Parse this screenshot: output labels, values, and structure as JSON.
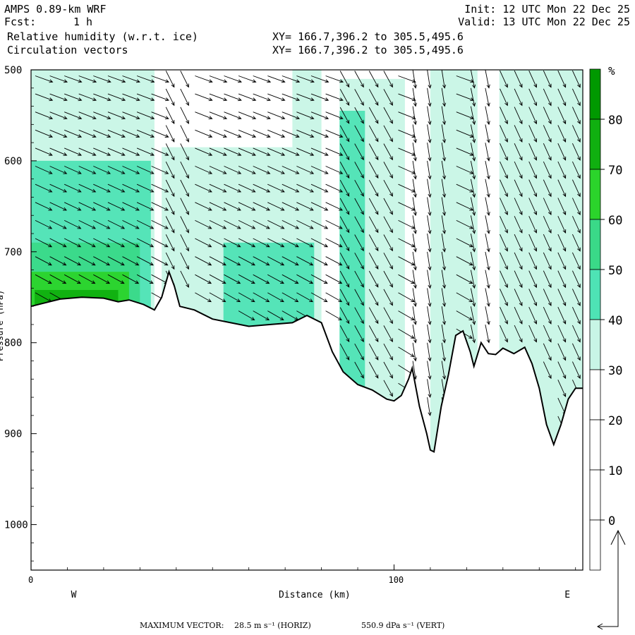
{
  "header": {
    "model": "AMPS 0.89-km WRF",
    "fcst_label": "Fcst:",
    "fcst_value": "1 h",
    "init": "Init: 12 UTC Mon 22 Dec 25",
    "valid": "Valid: 13 UTC Mon 22 Dec 25",
    "field1": "Relative humidity (w.r.t. ice)",
    "field2": "Circulation vectors",
    "xy1": "XY= 166.7,396.2 to 305.5,495.6",
    "xy2": "XY= 166.7,396.2 to 305.5,495.6"
  },
  "footer": {
    "max_vector_label": "MAXIMUM VECTOR:",
    "max_horiz": "28.5 m s⁻¹ (HORIZ)",
    "max_vert": "550.9 dPa s⁻¹ (VERT)"
  },
  "chart_data": {
    "type": "area",
    "title": "Relative humidity (w.r.t. ice)",
    "xlabel": "Distance (km)",
    "ylabel": "Pressure (hPa)",
    "x_range": [
      0,
      152
    ],
    "y_range": [
      500,
      1050
    ],
    "x_ticks": [
      0,
      100
    ],
    "y_ticks": [
      500,
      600,
      700,
      800,
      900,
      1000
    ],
    "x_end_labels": {
      "left": "W",
      "right": "E"
    },
    "colorbar": {
      "unit": "%",
      "levels": [
        0,
        10,
        20,
        30,
        40,
        50,
        60,
        70,
        80
      ],
      "colors": [
        "#ffffff",
        "#ffffff",
        "#ffffff",
        "#ffffff",
        "#c8f5e6",
        "#4ee3b5",
        "#3ad988",
        "#2bd42b",
        "#10b010",
        "#009900"
      ]
    },
    "terrain_hpa": [
      [
        0,
        760
      ],
      [
        3,
        757
      ],
      [
        8,
        752
      ],
      [
        14,
        750
      ],
      [
        20,
        751
      ],
      [
        24,
        755
      ],
      [
        27,
        753
      ],
      [
        31,
        758
      ],
      [
        34,
        764
      ],
      [
        36,
        750
      ],
      [
        38,
        722
      ],
      [
        39.5,
        738
      ],
      [
        41,
        760
      ],
      [
        45,
        764
      ],
      [
        50,
        774
      ],
      [
        55,
        778
      ],
      [
        60,
        782
      ],
      [
        66,
        780
      ],
      [
        72,
        778
      ],
      [
        76,
        770
      ],
      [
        80,
        778
      ],
      [
        83,
        810
      ],
      [
        86,
        832
      ],
      [
        90,
        846
      ],
      [
        94,
        852
      ],
      [
        98,
        862
      ],
      [
        100,
        864
      ],
      [
        102,
        858
      ],
      [
        104,
        840
      ],
      [
        105,
        828
      ],
      [
        107,
        870
      ],
      [
        109,
        900
      ],
      [
        110,
        918
      ],
      [
        111,
        920
      ],
      [
        113,
        870
      ],
      [
        115,
        835
      ],
      [
        117,
        792
      ],
      [
        119,
        787
      ],
      [
        121,
        810
      ],
      [
        122,
        826
      ],
      [
        124,
        800
      ],
      [
        126,
        812
      ],
      [
        128,
        813
      ],
      [
        130,
        806
      ],
      [
        133,
        812
      ],
      [
        136,
        805
      ],
      [
        138,
        823
      ],
      [
        140,
        850
      ],
      [
        142,
        890
      ],
      [
        144,
        912
      ],
      [
        146,
        890
      ],
      [
        148,
        862
      ],
      [
        150,
        850
      ],
      [
        152,
        850
      ]
    ],
    "rh_bands": [
      {
        "level": 30,
        "regions": [
          {
            "x": [
              0,
              34
            ],
            "p_top": 500,
            "p_bot": "terrain"
          },
          {
            "x": [
              36,
              72
            ],
            "p_top": 585,
            "p_bot": "terrain"
          },
          {
            "x": [
              72,
              80
            ],
            "p_top": 500,
            "p_bot": "terrain"
          },
          {
            "x": [
              85,
              103
            ],
            "p_top": 510,
            "p_bot": "terrain"
          },
          {
            "x": [
              110,
              123
            ],
            "p_top": 500,
            "p_bot": "terrain"
          },
          {
            "x": [
              129,
              152
            ],
            "p_top": 500,
            "p_bot": "terrain"
          }
        ]
      },
      {
        "level": 40,
        "regions": [
          {
            "x": [
              0,
              33
            ],
            "p_top": 600,
            "p_bot": "terrain"
          },
          {
            "x": [
              53,
              78
            ],
            "p_top": 690,
            "p_bot": "terrain"
          },
          {
            "x": [
              85,
              92
            ],
            "p_top": 545,
            "p_bot": "terrain"
          }
        ]
      },
      {
        "level": 50,
        "regions": [
          {
            "x": [
              0,
              30
            ],
            "p_top": 690,
            "p_bot": "terrain"
          }
        ]
      },
      {
        "level": 60,
        "regions": [
          {
            "x": [
              0,
              27
            ],
            "p_top": 722,
            "p_bot": "terrain"
          }
        ]
      },
      {
        "level": 70,
        "regions": [
          {
            "x": [
              1,
              24
            ],
            "p_top": 742,
            "p_bot": "terrain"
          }
        ]
      }
    ],
    "vectors": {
      "description": "Circulation vectors: predominantly westerly flow descending to the east; strong downslope vertical motion over terrain troughs near 105-112 km and 120-125 km.",
      "rows_hpa": [
        510,
        530,
        550,
        570,
        590,
        610,
        630,
        650,
        670,
        690,
        710,
        730,
        750,
        770,
        790,
        810,
        830,
        850,
        870,
        890,
        910
      ],
      "columns_km": [
        0,
        4,
        8,
        12,
        16,
        20,
        24,
        28,
        32,
        36,
        40,
        44,
        48,
        52,
        56,
        60,
        64,
        68,
        72,
        76,
        80,
        84,
        88,
        92,
        96,
        100,
        104,
        108,
        112,
        116,
        120,
        124,
        128,
        132,
        136,
        140,
        144,
        148
      ]
    },
    "grid": false,
    "legend": "right"
  }
}
